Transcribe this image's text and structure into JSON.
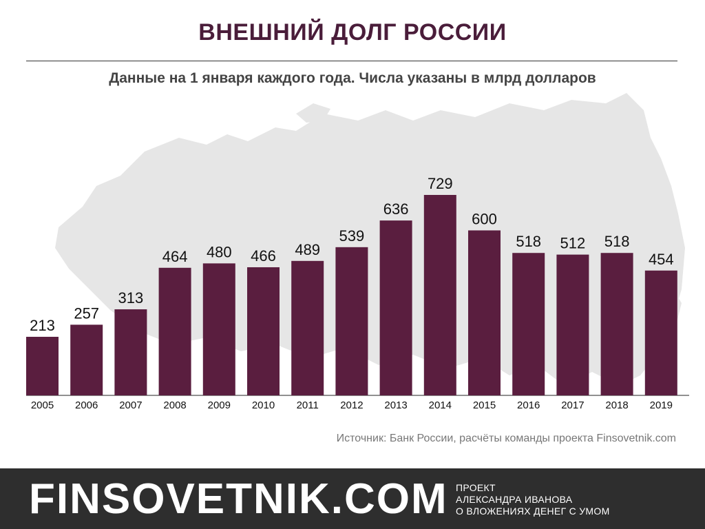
{
  "header": {
    "title": "ВНЕШНИЙ ДОЛГ РОССИИ",
    "subtitle": "Данные на 1 января каждого года. Числа указаны в млрд долларов"
  },
  "source": "Источник: Банк России, расчёты команды проекта Finsovetnik.com",
  "footer": {
    "brand": "FINSOVETNIK.COM",
    "tagline": [
      "ПРОЕКТ",
      "АЛЕКСАНДРА ИВАНОВА",
      "О ВЛОЖЕНИЯХ ДЕНЕГ С УМОМ"
    ]
  },
  "colors": {
    "bar": "#5a1e3f",
    "title": "#4a1d3a",
    "map": "#e6e6e6",
    "footer": "#2e2e2e"
  },
  "chart_data": {
    "type": "bar",
    "title": "ВНЕШНИЙ ДОЛГ РОССИИ",
    "subtitle": "Данные на 1 января каждого года. Числа указаны в млрд долларов",
    "categories": [
      "2005",
      "2006",
      "2007",
      "2008",
      "2009",
      "2010",
      "2011",
      "2012",
      "2013",
      "2014",
      "2015",
      "2016",
      "2017",
      "2018",
      "2019"
    ],
    "values": [
      213,
      257,
      313,
      464,
      480,
      466,
      489,
      539,
      636,
      729,
      600,
      518,
      512,
      518,
      454
    ],
    "xlabel": "",
    "ylabel": "",
    "ylim": [
      0,
      800
    ],
    "grid": false,
    "data_labels": true
  }
}
